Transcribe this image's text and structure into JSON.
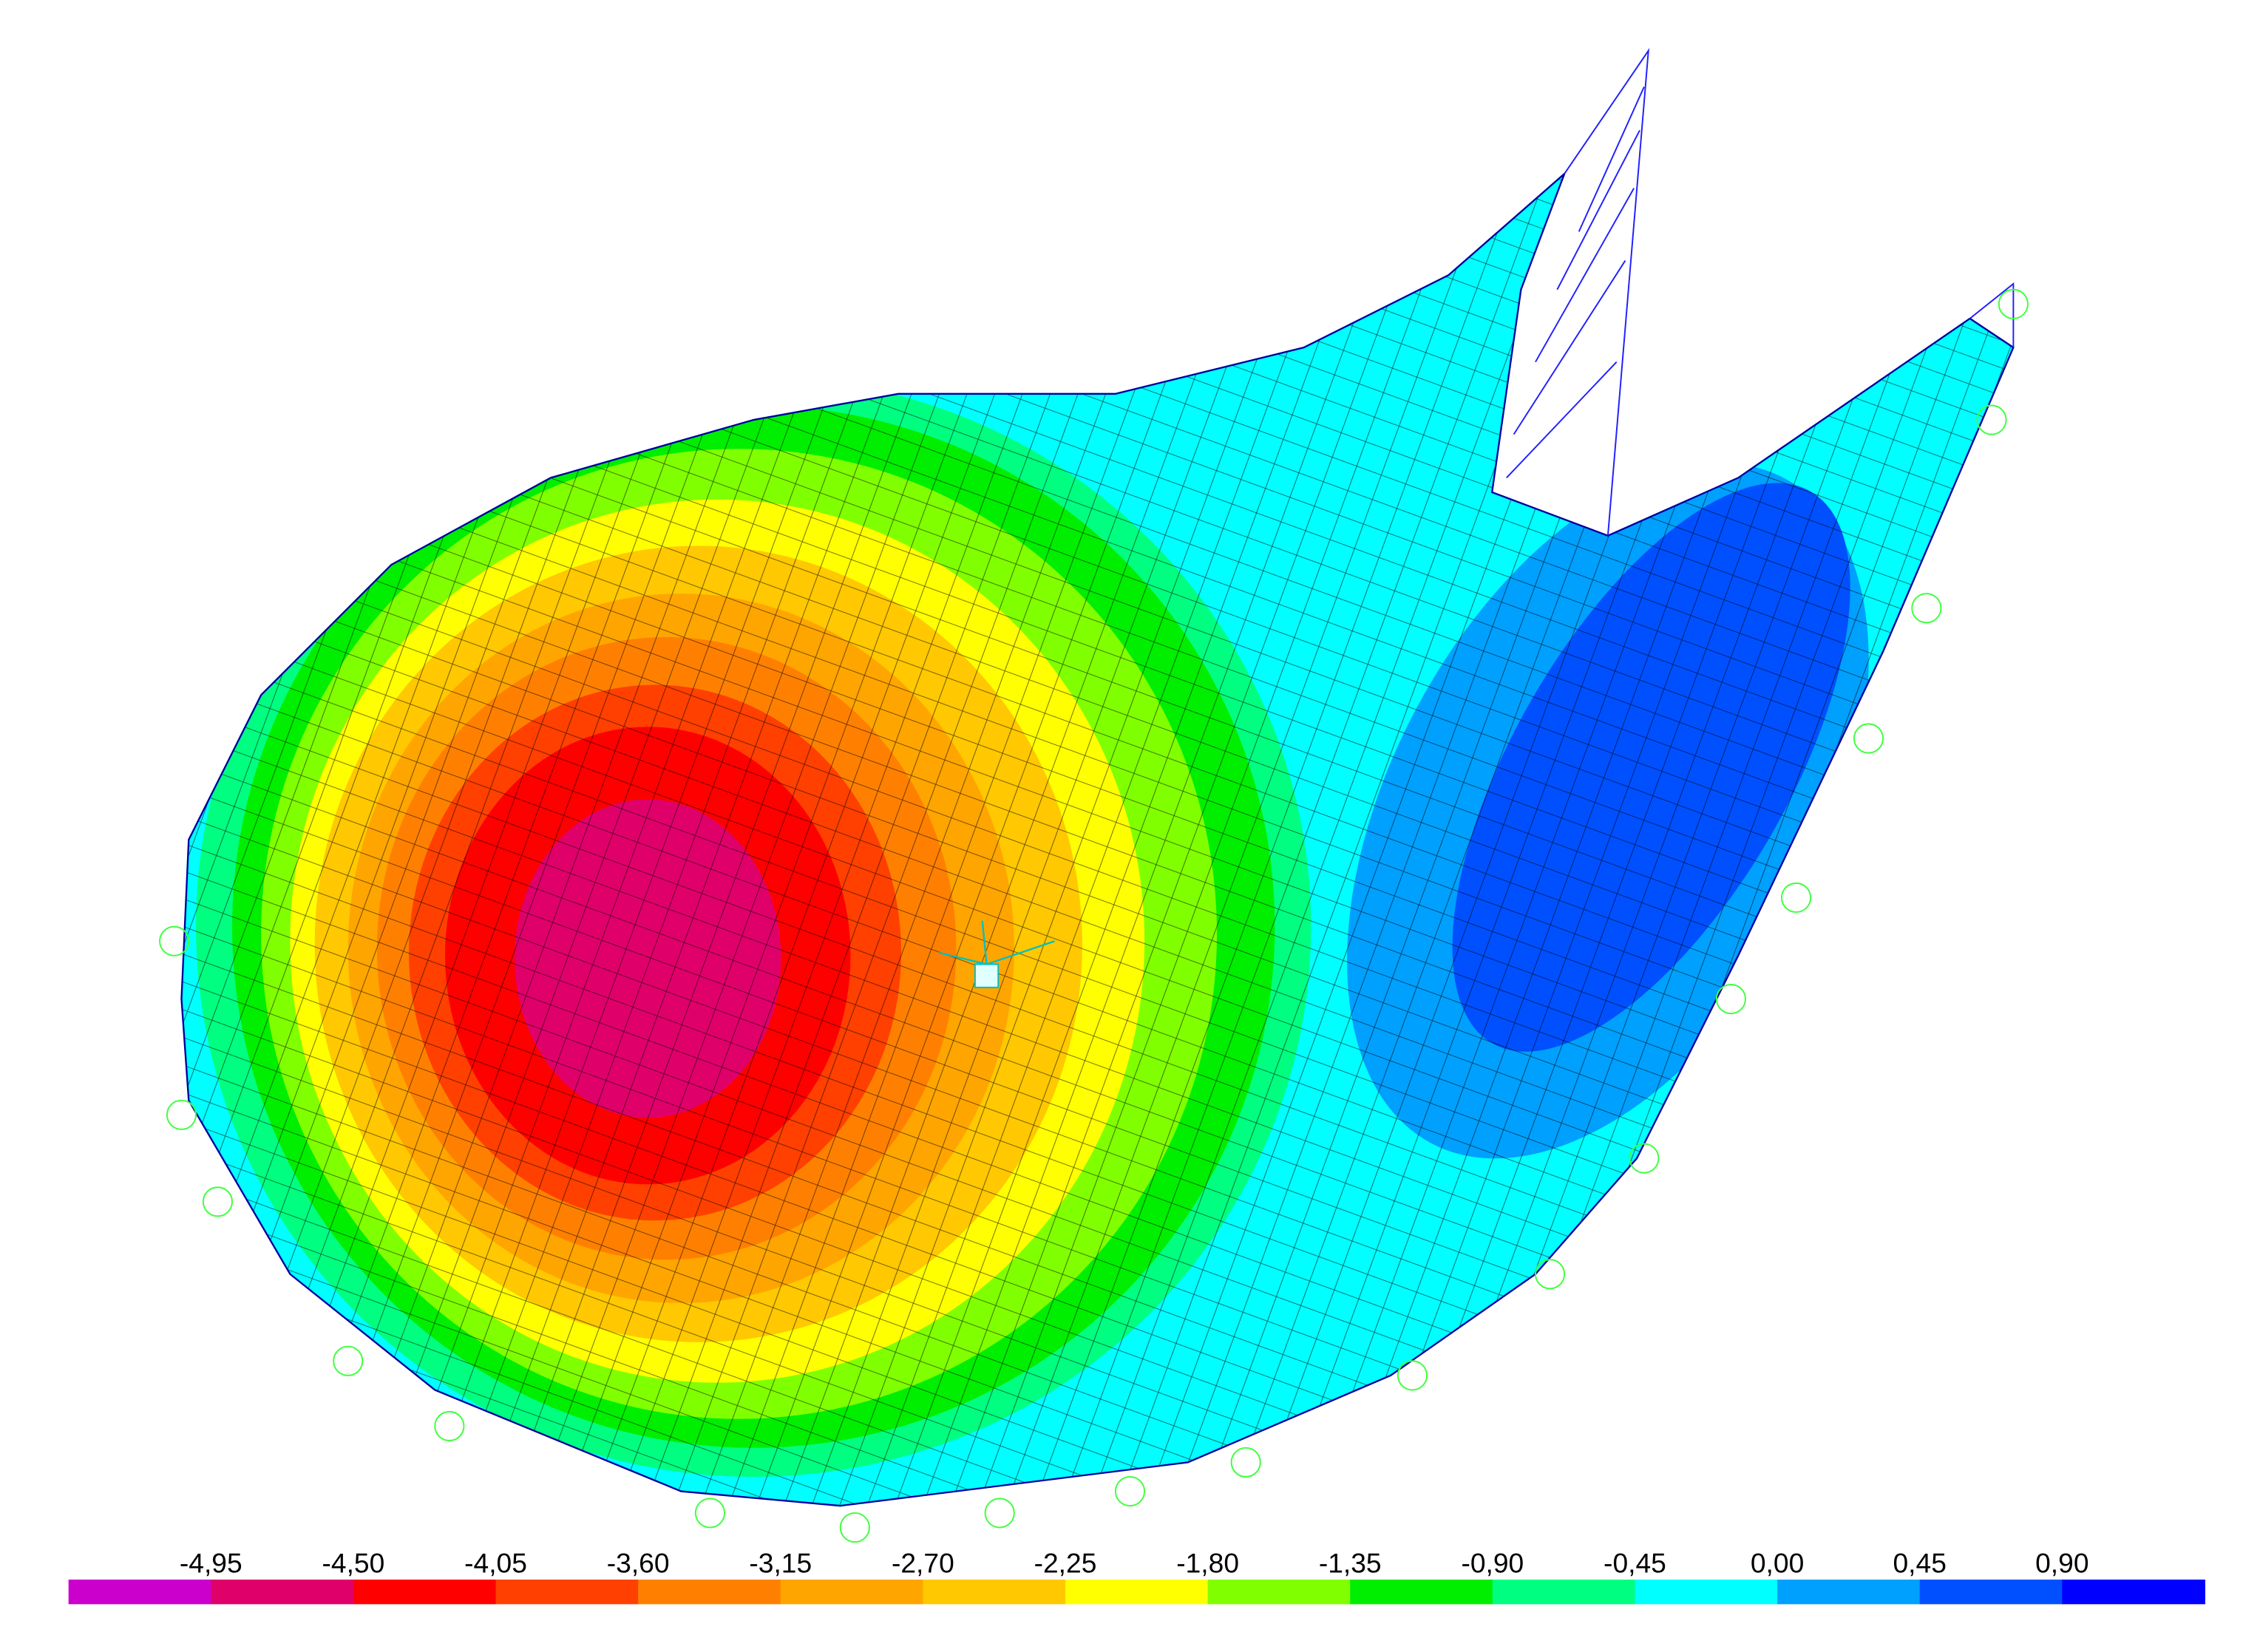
{
  "legend": {
    "labels": [
      "-4,95",
      "-4,50",
      "-4,05",
      "-3,60",
      "-3,15",
      "-2,70",
      "-2,25",
      "-1,80",
      "-1,35",
      "-0,90",
      "-0,45",
      "0,00",
      "0,45",
      "0,90"
    ],
    "colors": [
      "#cc00cc",
      "#e0006a",
      "#ff0000",
      "#ff4000",
      "#ff8000",
      "#ffa500",
      "#ffc800",
      "#ffff00",
      "#80ff00",
      "#00ee00",
      "#00ff80",
      "#00ffff",
      "#00a0ff",
      "#0050ff",
      "#0000ff"
    ]
  }
}
